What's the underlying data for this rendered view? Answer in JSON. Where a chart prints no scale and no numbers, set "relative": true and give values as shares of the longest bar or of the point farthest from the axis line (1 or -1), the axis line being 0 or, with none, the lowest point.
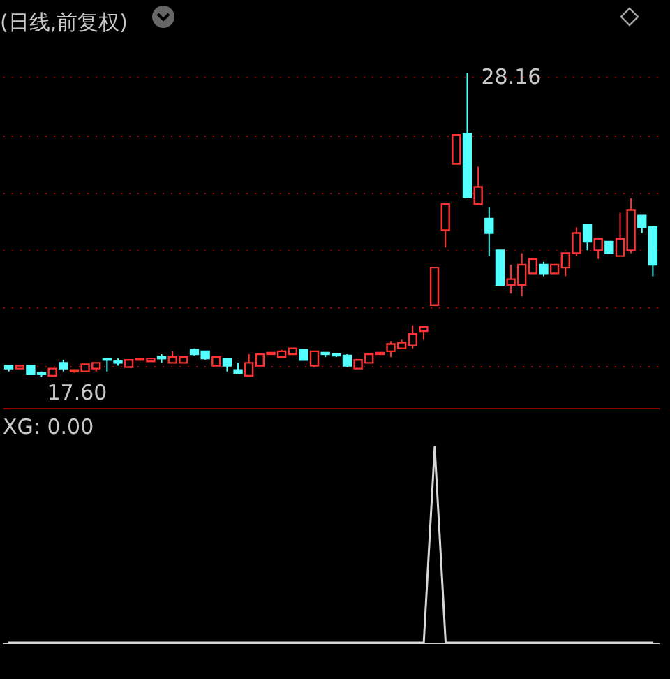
{
  "chart_data": [
    {
      "type": "candlestick",
      "title": "(日线,前复权)",
      "categories": [
        null,
        null,
        null,
        null,
        null,
        null,
        null,
        null,
        null,
        null,
        null,
        null,
        null,
        null,
        null,
        null,
        null,
        null,
        null,
        null,
        null,
        null,
        null,
        null,
        null,
        null,
        null,
        null,
        null,
        null,
        null,
        null,
        null,
        null,
        null,
        null,
        null,
        null,
        null,
        null,
        null,
        null,
        null,
        null,
        null,
        null,
        null,
        null,
        null,
        null,
        null,
        null,
        null,
        null,
        null,
        null,
        null,
        null,
        null,
        null
      ],
      "ohlc": [
        [
          18.0,
          18.0,
          17.8,
          17.9
        ],
        [
          17.9,
          18.0,
          17.9,
          18.0
        ],
        [
          18.0,
          18.0,
          17.7,
          17.7
        ],
        [
          17.75,
          17.8,
          17.6,
          17.7
        ],
        [
          17.65,
          17.9,
          17.65,
          17.9
        ],
        [
          18.1,
          18.2,
          17.8,
          17.9
        ],
        [
          17.8,
          17.85,
          17.75,
          17.85
        ],
        [
          17.8,
          18.05,
          17.8,
          18.05
        ],
        [
          17.9,
          18.1,
          17.8,
          18.1
        ],
        [
          18.25,
          18.25,
          17.8,
          18.2
        ],
        [
          18.15,
          18.25,
          18.0,
          18.1
        ],
        [
          17.95,
          18.2,
          17.95,
          18.2
        ],
        [
          18.2,
          18.25,
          18.2,
          18.25
        ],
        [
          18.15,
          18.25,
          18.15,
          18.25
        ],
        [
          18.3,
          18.4,
          18.1,
          18.25
        ],
        [
          18.1,
          18.5,
          18.1,
          18.3
        ],
        [
          18.1,
          18.3,
          18.1,
          18.3
        ],
        [
          18.55,
          18.6,
          18.35,
          18.4
        ],
        [
          18.5,
          18.5,
          18.2,
          18.25
        ],
        [
          18.0,
          18.3,
          18.0,
          18.3
        ],
        [
          18.25,
          18.25,
          17.8,
          18.0
        ],
        [
          17.85,
          18.1,
          17.7,
          17.75
        ],
        [
          17.65,
          18.4,
          17.65,
          18.1
        ],
        [
          18.0,
          18.4,
          18.0,
          18.4
        ],
        [
          18.4,
          18.45,
          18.4,
          18.45
        ],
        [
          18.3,
          18.55,
          18.3,
          18.5
        ],
        [
          18.4,
          18.6,
          18.4,
          18.6
        ],
        [
          18.55,
          18.55,
          18.2,
          18.2
        ],
        [
          18.0,
          18.5,
          18.0,
          18.5
        ],
        [
          18.45,
          18.45,
          18.3,
          18.4
        ],
        [
          18.4,
          18.45,
          18.3,
          18.35
        ],
        [
          18.35,
          18.4,
          17.95,
          18.0
        ],
        [
          17.9,
          18.2,
          17.9,
          18.2
        ],
        [
          18.1,
          18.4,
          18.1,
          18.4
        ],
        [
          18.4,
          18.45,
          18.4,
          18.45
        ],
        [
          18.5,
          18.85,
          18.3,
          18.75
        ],
        [
          18.6,
          18.9,
          18.6,
          18.8
        ],
        [
          18.7,
          19.4,
          18.6,
          19.1
        ],
        [
          19.2,
          19.35,
          18.9,
          19.35
        ],
        [
          20.1,
          21.4,
          20.1,
          21.4
        ],
        [
          22.7,
          23.6,
          22.1,
          23.6
        ],
        [
          25.0,
          26.0,
          25.0,
          26.0
        ],
        [
          26.05,
          28.16,
          23.8,
          23.85
        ],
        [
          23.6,
          24.9,
          23.6,
          24.2
        ],
        [
          23.1,
          23.5,
          21.8,
          22.6
        ],
        [
          22.0,
          22.0,
          20.8,
          20.8
        ],
        [
          20.8,
          21.5,
          20.5,
          21.0
        ],
        [
          20.8,
          21.9,
          20.4,
          21.5
        ],
        [
          21.2,
          21.7,
          21.2,
          21.7
        ],
        [
          21.5,
          21.6,
          21.1,
          21.2
        ],
        [
          21.2,
          21.5,
          21.2,
          21.5
        ],
        [
          21.4,
          21.9,
          21.1,
          21.9
        ],
        [
          21.9,
          22.8,
          21.8,
          22.6
        ],
        [
          22.9,
          22.9,
          22.0,
          22.3
        ],
        [
          22.0,
          22.4,
          21.7,
          22.4
        ],
        [
          22.3,
          22.3,
          21.9,
          21.9
        ],
        [
          21.8,
          23.3,
          21.8,
          22.4
        ],
        [
          22.0,
          23.8,
          21.9,
          23.4
        ],
        [
          23.2,
          23.2,
          22.6,
          22.8
        ],
        [
          22.8,
          22.8,
          21.1,
          21.5
        ]
      ],
      "colors": [
        "#54ffff",
        "#ff3232",
        "#54ffff",
        "#54ffff",
        "#ff3232",
        "#54ffff",
        "#ff3232",
        "#ff3232",
        "#ff3232",
        "#54ffff",
        "#54ffff",
        "#ff3232",
        "#ff3232",
        "#ff3232",
        "#54ffff",
        "#ff3232",
        "#ff3232",
        "#54ffff",
        "#54ffff",
        "#ff3232",
        "#54ffff",
        "#54ffff",
        "#ff3232",
        "#ff3232",
        "#ff3232",
        "#ff3232",
        "#ff3232",
        "#54ffff",
        "#ff3232",
        "#54ffff",
        "#54ffff",
        "#54ffff",
        "#ff3232",
        "#ff3232",
        "#ff3232",
        "#ff3232",
        "#ff3232",
        "#ff3232",
        "#ff3232",
        "#ff3232",
        "#ff3232",
        "#ff3232",
        "#54ffff",
        "#ff3232",
        "#54ffff",
        "#54ffff",
        "#ff3232",
        "#ff3232",
        "#ff3232",
        "#54ffff",
        "#ff3232",
        "#ff3232",
        "#ff3232",
        "#54ffff",
        "#ff3232",
        "#54ffff",
        "#ff3232",
        "#ff3232",
        "#54ffff",
        "#54ffff"
      ],
      "yticks": [
        {
          "value": 18,
          "label": null
        },
        {
          "value": 20,
          "label": null
        },
        {
          "value": 22,
          "label": null
        },
        {
          "value": 24,
          "label": null
        },
        {
          "value": 26,
          "label": null
        },
        {
          "value": 28,
          "label": null
        }
      ],
      "grid": "y",
      "annotations": [
        "28.16",
        "17.60"
      ]
    },
    {
      "type": "line",
      "title": "XG: 0.00",
      "relative": true,
      "categories": [
        null,
        null,
        null,
        null,
        null,
        null,
        null,
        null,
        null,
        null,
        null,
        null,
        null,
        null,
        null,
        null,
        null,
        null,
        null,
        null,
        null,
        null,
        null,
        null,
        null,
        null,
        null,
        null,
        null,
        null,
        null,
        null,
        null,
        null,
        null,
        null,
        null,
        null,
        null,
        null,
        null,
        null,
        null,
        null,
        null,
        null,
        null,
        null,
        null,
        null,
        null,
        null,
        null,
        null,
        null,
        null,
        null,
        null,
        null,
        null
      ],
      "series": [
        {
          "color": "#d8d8d8",
          "values": [
            0,
            0,
            0,
            0,
            0,
            0,
            0,
            0,
            0,
            0,
            0,
            0,
            0,
            0,
            0,
            0,
            0,
            0,
            0,
            0,
            0,
            0,
            0,
            0,
            0,
            0,
            0,
            0,
            0,
            0,
            0,
            0,
            0,
            0,
            0,
            0,
            0,
            0,
            0,
            1,
            0,
            0,
            0,
            0,
            0,
            0,
            0,
            0,
            0,
            0,
            0,
            0,
            0,
            0,
            0,
            0,
            0,
            0,
            0,
            0
          ]
        }
      ]
    }
  ]
}
